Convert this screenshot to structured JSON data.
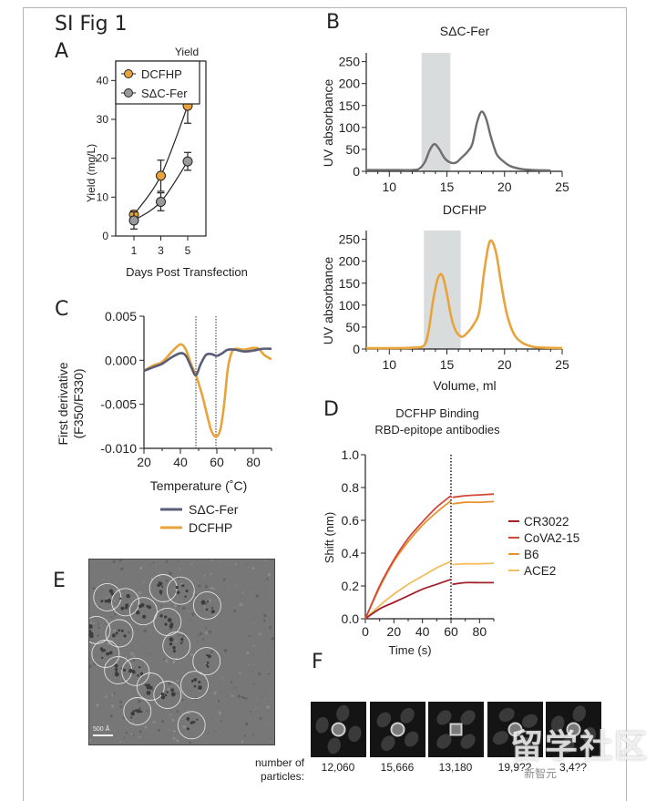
{
  "figure_title": "SI Fig 1",
  "panel_labels": {
    "A": "A",
    "B": "B",
    "C": "C",
    "D": "D",
    "E": "E",
    "F": "F"
  },
  "colors": {
    "dcfhp": "#e8a33a",
    "sdc_fer": "#9a9a9a",
    "sdc_fer_nanodsf": "#5a5d78",
    "cr3022": "#a3202a",
    "cova2_15": "#d04a3c",
    "b6": "#e8912e",
    "ace2": "#f2bd5a",
    "shade": "#d9dcdc"
  },
  "chart_data": [
    {
      "id": "A",
      "type": "line",
      "title": "Yield",
      "xlabel": "Days Post Transfection",
      "ylabel": "Yield (mg/L)",
      "x": [
        1,
        3,
        5
      ],
      "xticks": [
        "1",
        "3",
        "5"
      ],
      "ylim": [
        0,
        45
      ],
      "yticks": [
        "0",
        "10",
        "20",
        "30",
        "40"
      ],
      "legend": {
        "position": "top-left",
        "entries": [
          "DCFHP",
          "SΔC-Fer"
        ]
      },
      "series": [
        {
          "name": "DCFHP",
          "values": [
            5.5,
            15.5,
            33.5
          ],
          "err": [
            1.0,
            4.0,
            4.5
          ]
        },
        {
          "name": "SΔC-Fer",
          "values": [
            4.0,
            8.8,
            19.2
          ],
          "err": [
            2.2,
            2.3,
            2.3
          ]
        }
      ]
    },
    {
      "id": "B-top",
      "type": "line",
      "title": "SΔC-Fer",
      "xlabel": "",
      "ylabel": "UV absorbance",
      "xlim": [
        8,
        25
      ],
      "ylim": [
        0,
        270
      ],
      "xticks": [
        "10",
        "15",
        "20",
        "25"
      ],
      "yticks": [
        "0",
        "50",
        "100",
        "150",
        "200",
        "250"
      ],
      "shaded_region": [
        12.8,
        15.3
      ],
      "series": [
        {
          "name": "SΔC-Fer",
          "x": [
            8,
            10,
            12,
            12.6,
            13.1,
            13.5,
            13.9,
            14.3,
            14.8,
            15.3,
            15.8,
            16.3,
            16.8,
            17.2,
            17.6,
            18.0,
            18.4,
            18.8,
            19.3,
            19.8,
            20.5,
            21.5,
            22.5,
            24
          ],
          "values": [
            3,
            3,
            3,
            6,
            22,
            48,
            62,
            52,
            30,
            20,
            20,
            32,
            45,
            62,
            110,
            136,
            120,
            80,
            40,
            25,
            12,
            5,
            3,
            2
          ]
        }
      ]
    },
    {
      "id": "B-bottom",
      "type": "line",
      "title": "DCFHP",
      "xlabel": "Volume, ml",
      "ylabel": "UV absorbance",
      "xlim": [
        8,
        25
      ],
      "ylim": [
        0,
        270
      ],
      "xticks": [
        "10",
        "15",
        "20",
        "25"
      ],
      "yticks": [
        "0",
        "50",
        "100",
        "150",
        "200",
        "250"
      ],
      "shaded_region": [
        13.0,
        16.2
      ],
      "series": [
        {
          "name": "DCFHP",
          "x": [
            8,
            10,
            12,
            13.0,
            13.4,
            13.8,
            14.2,
            14.6,
            15.0,
            15.4,
            15.8,
            16.3,
            16.8,
            17.3,
            17.8,
            18.2,
            18.6,
            18.9,
            19.3,
            19.7,
            20.2,
            20.8,
            21.5,
            22.5,
            23.5,
            25
          ],
          "values": [
            2,
            2,
            3,
            8,
            40,
            110,
            160,
            168,
            125,
            70,
            40,
            28,
            38,
            55,
            85,
            170,
            235,
            246,
            215,
            150,
            80,
            35,
            15,
            5,
            3,
            2
          ]
        }
      ]
    },
    {
      "id": "C",
      "type": "line",
      "title": "",
      "xlabel": "Temperature (˚C)",
      "ylabel": "First derivative (F350/F330)",
      "ylabel_lines": [
        "First derivative",
        "(F350/F330)"
      ],
      "xlim": [
        20,
        90
      ],
      "ylim": [
        -0.01,
        0.005
      ],
      "xticks": [
        "20",
        "40",
        "60",
        "80"
      ],
      "yticks": [
        "0.005",
        "0.000",
        "-0.005",
        "-0.010"
      ],
      "vlines": [
        48.5,
        59.5
      ],
      "legend": {
        "position": "bottom",
        "entries": [
          "SΔC-Fer",
          "DCFHP"
        ]
      },
      "series": [
        {
          "name": "SΔC-Fer",
          "x": [
            20,
            25,
            30,
            35,
            40,
            43,
            46,
            48.5,
            51,
            54,
            57,
            60,
            63,
            66,
            70,
            75,
            80,
            85,
            90
          ],
          "values": [
            -0.0012,
            -0.0008,
            -0.0004,
            0.0003,
            0.0008,
            0.0005,
            -0.0008,
            -0.0017,
            -0.0005,
            0.0006,
            0.0007,
            0.0005,
            0.0008,
            0.0012,
            0.0012,
            0.001,
            0.0011,
            0.0013,
            0.0013
          ]
        },
        {
          "name": "DCFHP",
          "x": [
            20,
            25,
            30,
            35,
            40,
            43,
            46,
            49,
            52,
            55,
            57,
            59.5,
            62,
            64,
            66,
            68,
            70,
            75,
            80,
            83,
            86,
            90
          ],
          "values": [
            -0.0012,
            -0.0006,
            -0.0002,
            0.0009,
            0.0018,
            0.0012,
            -0.0005,
            -0.002,
            -0.004,
            -0.0065,
            -0.008,
            -0.0087,
            -0.0078,
            -0.005,
            -0.001,
            0.0008,
            0.0013,
            0.0012,
            0.0014,
            0.0013,
            0.0006,
            0.0001
          ]
        }
      ]
    },
    {
      "id": "D",
      "type": "line",
      "title": "DCFHP Binding",
      "subtitle": "RBD-epitope antibodies",
      "xlabel": "Time (s)",
      "ylabel": "Shift (nm)",
      "xlim": [
        0,
        90
      ],
      "ylim": [
        0,
        1.0
      ],
      "xticks": [
        "0",
        "20",
        "40",
        "60",
        "80"
      ],
      "yticks": [
        "0.0",
        "0.2",
        "0.4",
        "0.6",
        "0.8",
        "1.0"
      ],
      "vlines": [
        60
      ],
      "legend": {
        "position": "right",
        "entries": [
          "CR3022",
          "CoVA2-15",
          "B6",
          "ACE2"
        ]
      },
      "series": [
        {
          "name": "CR3022",
          "x": [
            0,
            10,
            20,
            30,
            40,
            50,
            60,
            61,
            70,
            80,
            90
          ],
          "values": [
            0.0,
            0.06,
            0.1,
            0.14,
            0.18,
            0.21,
            0.24,
            0.21,
            0.22,
            0.22,
            0.22
          ]
        },
        {
          "name": "CoVA2-15",
          "x": [
            0,
            10,
            20,
            30,
            40,
            50,
            60,
            61,
            70,
            80,
            90
          ],
          "values": [
            0.0,
            0.2,
            0.36,
            0.49,
            0.59,
            0.68,
            0.75,
            0.74,
            0.75,
            0.755,
            0.76
          ]
        },
        {
          "name": "B6",
          "x": [
            0,
            10,
            20,
            30,
            40,
            50,
            60,
            61,
            70,
            80,
            90
          ],
          "values": [
            0.0,
            0.19,
            0.35,
            0.47,
            0.57,
            0.65,
            0.72,
            0.7,
            0.71,
            0.71,
            0.715
          ]
        },
        {
          "name": "ACE2",
          "x": [
            0,
            10,
            20,
            30,
            40,
            50,
            60,
            61,
            70,
            80,
            90
          ],
          "values": [
            0.0,
            0.08,
            0.15,
            0.21,
            0.26,
            0.31,
            0.35,
            0.33,
            0.335,
            0.335,
            0.338
          ]
        }
      ]
    }
  ],
  "panel_e": {
    "scale_bar_label": "500 Å",
    "particle_count_circled": 21
  },
  "panel_f": {
    "row_label_line1": "number of",
    "row_label_line2": "particles:",
    "classes": [
      {
        "count": "12,060"
      },
      {
        "count": "15,666"
      },
      {
        "count": "13,180"
      },
      {
        "count": "19,9??"
      },
      {
        "count": "3,4??"
      }
    ]
  },
  "watermark": {
    "text": "留学社区",
    "subtext": "新智元"
  }
}
